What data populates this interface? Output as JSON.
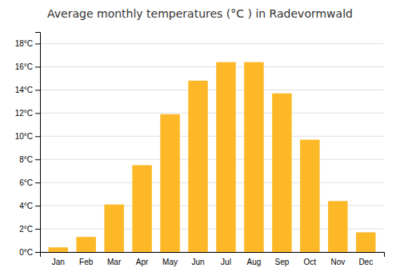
{
  "chart_data": {
    "type": "bar",
    "title": "Average monthly temperatures (°C ) in Radevormwald",
    "categories": [
      "Jan",
      "Feb",
      "Mar",
      "Apr",
      "May",
      "Jun",
      "Jul",
      "Aug",
      "Sep",
      "Oct",
      "Nov",
      "Dec"
    ],
    "values": [
      0.4,
      1.3,
      4.1,
      7.5,
      11.9,
      14.8,
      16.4,
      16.4,
      13.7,
      9.7,
      4.4,
      1.7
    ],
    "color": "#FDB827",
    "ylim": [
      0,
      19
    ],
    "yticks": [
      {
        "value": 0,
        "label": "0°C"
      },
      {
        "value": 2,
        "label": "2°C"
      },
      {
        "value": 4,
        "label": "4°C"
      },
      {
        "value": 6,
        "label": "6°C"
      },
      {
        "value": 8,
        "label": "8°C"
      },
      {
        "value": 10,
        "label": "10°C"
      },
      {
        "value": 12,
        "label": "12°C"
      },
      {
        "value": 14,
        "label": "14°C"
      },
      {
        "value": 16,
        "label": "16°C"
      },
      {
        "value": 18,
        "label": "18°C"
      }
    ],
    "grid": true
  }
}
